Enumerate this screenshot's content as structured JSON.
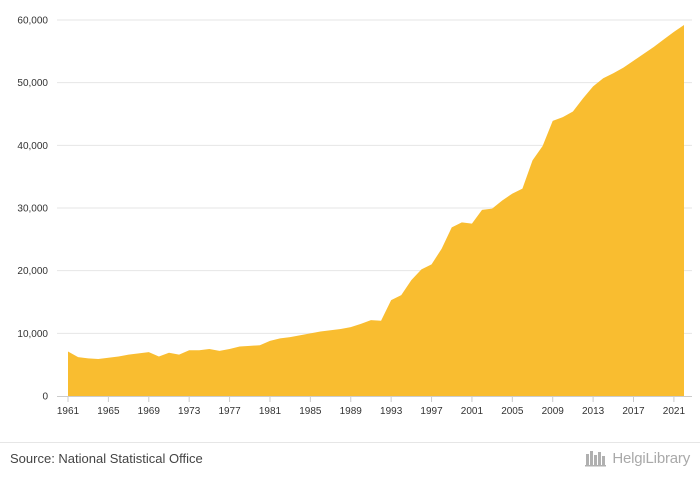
{
  "chart_data": {
    "type": "area",
    "x": [
      1961,
      1962,
      1963,
      1964,
      1965,
      1966,
      1967,
      1968,
      1969,
      1970,
      1971,
      1972,
      1973,
      1974,
      1975,
      1976,
      1977,
      1978,
      1979,
      1980,
      1981,
      1982,
      1983,
      1984,
      1985,
      1986,
      1987,
      1988,
      1989,
      1990,
      1991,
      1992,
      1993,
      1994,
      1995,
      1996,
      1997,
      1998,
      1999,
      2000,
      2001,
      2002,
      2003,
      2004,
      2005,
      2006,
      2007,
      2008,
      2009,
      2010,
      2011,
      2012,
      2013,
      2014,
      2015,
      2016,
      2017,
      2018,
      2019,
      2020,
      2021,
      2022
    ],
    "values": [
      7100,
      6200,
      6000,
      5900,
      6100,
      6300,
      6600,
      6800,
      7000,
      6300,
      6900,
      6600,
      7300,
      7300,
      7500,
      7200,
      7500,
      7900,
      8000,
      8100,
      8800,
      9200,
      9400,
      9700,
      10000,
      10300,
      10500,
      10700,
      11000,
      11500,
      12100,
      12000,
      15300,
      16100,
      18500,
      20200,
      21000,
      23500,
      26900,
      27700,
      27500,
      29700,
      29900,
      31200,
      32300,
      33100,
      37600,
      39900,
      43900,
      44500,
      45400,
      47500,
      49400,
      50700,
      51500,
      52400,
      53500,
      54600,
      55700,
      56900,
      58100,
      59200
    ],
    "ylim": [
      0,
      60000
    ],
    "yticks": [
      "0",
      "10,000",
      "20,000",
      "30,000",
      "40,000",
      "50,000",
      "60,000"
    ],
    "xticks": [
      "1961",
      "1965",
      "1969",
      "1973",
      "1977",
      "1981",
      "1985",
      "1989",
      "1993",
      "1997",
      "2001",
      "2005",
      "2009",
      "2013",
      "2017",
      "2021"
    ],
    "grid": true,
    "fill_color": "#F9BD30"
  },
  "footer": {
    "source": "Source: National Statistical Office",
    "brand": "HelgiLibrary"
  }
}
